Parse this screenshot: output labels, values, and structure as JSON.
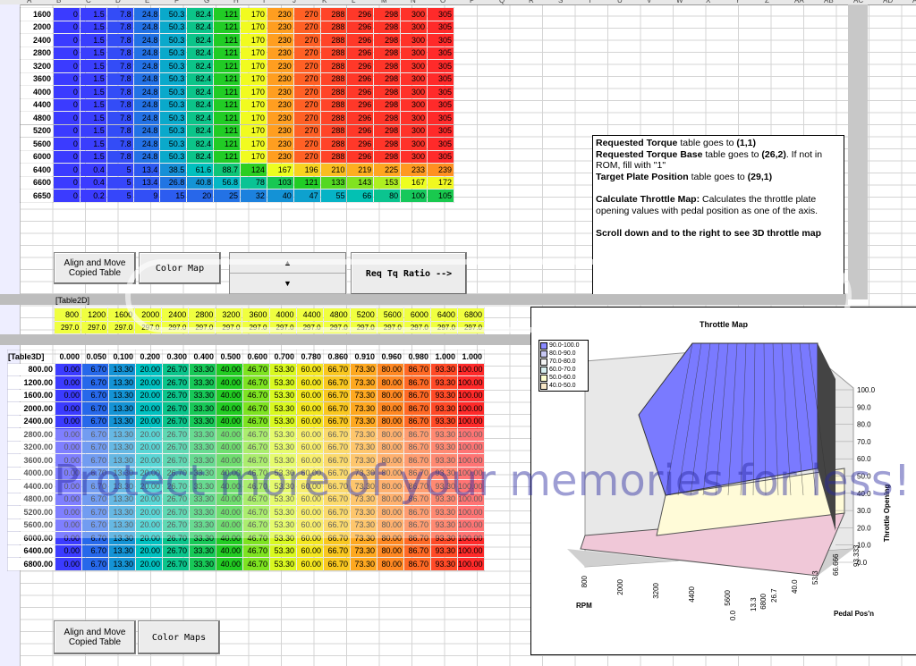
{
  "column_letters": [
    "A",
    "B",
    "C",
    "D",
    "E",
    "F",
    "G",
    "H",
    "I",
    "J",
    "K",
    "L",
    "M",
    "N",
    "O",
    "P",
    "Q",
    "R",
    "S",
    "T",
    "U",
    "V",
    "W",
    "X",
    "Y",
    "Z",
    "AA",
    "AB",
    "AC",
    "AD",
    "AE"
  ],
  "torque_table": {
    "rows": [
      {
        "rpm": "1600",
        "vals": [
          "0",
          "1.5",
          "7.8",
          "24.8",
          "50.3",
          "82.4",
          "121",
          "170",
          "230",
          "270",
          "288",
          "296",
          "298",
          "300",
          "305"
        ]
      },
      {
        "rpm": "2000",
        "vals": [
          "0",
          "1.5",
          "7.8",
          "24.8",
          "50.3",
          "82.4",
          "121",
          "170",
          "230",
          "270",
          "288",
          "296",
          "298",
          "300",
          "305"
        ]
      },
      {
        "rpm": "2400",
        "vals": [
          "0",
          "1.5",
          "7.8",
          "24.8",
          "50.3",
          "82.4",
          "121",
          "170",
          "230",
          "270",
          "288",
          "296",
          "298",
          "300",
          "305"
        ]
      },
      {
        "rpm": "2800",
        "vals": [
          "0",
          "1.5",
          "7.8",
          "24.8",
          "50.3",
          "82.4",
          "121",
          "170",
          "230",
          "270",
          "288",
          "296",
          "298",
          "300",
          "305"
        ]
      },
      {
        "rpm": "3200",
        "vals": [
          "0",
          "1.5",
          "7.8",
          "24.8",
          "50.3",
          "82.4",
          "121",
          "170",
          "230",
          "270",
          "288",
          "296",
          "298",
          "300",
          "305"
        ]
      },
      {
        "rpm": "3600",
        "vals": [
          "0",
          "1.5",
          "7.8",
          "24.8",
          "50.3",
          "82.4",
          "121",
          "170",
          "230",
          "270",
          "288",
          "296",
          "298",
          "300",
          "305"
        ]
      },
      {
        "rpm": "4000",
        "vals": [
          "0",
          "1.5",
          "7.8",
          "24.8",
          "50.3",
          "82.4",
          "121",
          "170",
          "230",
          "270",
          "288",
          "296",
          "298",
          "300",
          "305"
        ]
      },
      {
        "rpm": "4400",
        "vals": [
          "0",
          "1.5",
          "7.8",
          "24.8",
          "50.3",
          "82.4",
          "121",
          "170",
          "230",
          "270",
          "288",
          "296",
          "298",
          "300",
          "305"
        ]
      },
      {
        "rpm": "4800",
        "vals": [
          "0",
          "1.5",
          "7.8",
          "24.8",
          "50.3",
          "82.4",
          "121",
          "170",
          "230",
          "270",
          "288",
          "296",
          "298",
          "300",
          "305"
        ]
      },
      {
        "rpm": "5200",
        "vals": [
          "0",
          "1.5",
          "7.8",
          "24.8",
          "50.3",
          "82.4",
          "121",
          "170",
          "230",
          "270",
          "288",
          "296",
          "298",
          "300",
          "305"
        ]
      },
      {
        "rpm": "5600",
        "vals": [
          "0",
          "1.5",
          "7.8",
          "24.8",
          "50.3",
          "82.4",
          "121",
          "170",
          "230",
          "270",
          "288",
          "296",
          "298",
          "300",
          "305"
        ]
      },
      {
        "rpm": "6000",
        "vals": [
          "0",
          "1.5",
          "7.8",
          "24.8",
          "50.3",
          "82.4",
          "121",
          "170",
          "230",
          "270",
          "288",
          "296",
          "298",
          "300",
          "305"
        ]
      },
      {
        "rpm": "6400",
        "vals": [
          "0",
          "0.4",
          "5",
          "13.4",
          "38.5",
          "61.6",
          "88.7",
          "124",
          "167",
          "196",
          "210",
          "219",
          "225",
          "233",
          "239"
        ]
      },
      {
        "rpm": "6600",
        "vals": [
          "0",
          "0.4",
          "5",
          "13.4",
          "26.8",
          "40.8",
          "56.8",
          "78",
          "103",
          "121",
          "133",
          "143",
          "153",
          "167",
          "172"
        ]
      },
      {
        "rpm": "6650",
        "vals": [
          "0",
          "0.2",
          "5",
          "9",
          "15",
          "20",
          "25",
          "32",
          "40",
          "47",
          "55",
          "66",
          "80",
          "100",
          "105"
        ]
      }
    ]
  },
  "buttons": {
    "align_move_1": "Align and Move Copied Table",
    "color_map": "Color Map",
    "req_tq_ratio": "Req Tq Ratio -->",
    "align_move_2": "Align and Move Copied Table",
    "color_maps": "Color Maps",
    "spin_up": "▲",
    "spin_down": "▼"
  },
  "note": {
    "line1_b": "Requested Torque",
    "line1_t": " table goes to ",
    "line1_v": "(1,1)",
    "line2_b": "Requested Torque Base",
    "line2_t": " table goes to ",
    "line2_v": "(26,2)",
    "line2_rest": ". If not in ROM, fill with \"1\"",
    "line3_b": "Target Plate Position",
    "line3_t": " table goes to ",
    "line3_v": "(29,1)",
    "calc_b": "Calculate Throttle Map:",
    "calc_t": " Calculates the throttle plate opening values with pedal position as one of the axis.",
    "scroll": "Scroll down and to the right to see 3D throttle map"
  },
  "table2d": {
    "label": "[Table2D]",
    "headers": [
      "800",
      "1200",
      "1600",
      "2000",
      "2400",
      "2800",
      "3200",
      "3600",
      "4000",
      "4400",
      "4800",
      "5200",
      "5600",
      "6000",
      "6400",
      "6800"
    ],
    "values": [
      "297.0",
      "297.0",
      "297.0",
      "297.0",
      "297.0",
      "297.0",
      "297.0",
      "297.0",
      "297.0",
      "297.0",
      "297.0",
      "297.0",
      "297.0",
      "297.0",
      "297.0",
      "297.0"
    ]
  },
  "table3d": {
    "label": "[Table3D]",
    "headers": [
      "0.000",
      "0.050",
      "0.100",
      "0.200",
      "0.300",
      "0.400",
      "0.500",
      "0.600",
      "0.700",
      "0.780",
      "0.860",
      "0.910",
      "0.960",
      "0.980",
      "1.000",
      "1.000"
    ],
    "rows": [
      {
        "rpm": "800.00",
        "vals": [
          "0.00",
          "6.70",
          "13.30",
          "20.00",
          "26.70",
          "33.30",
          "40.00",
          "46.70",
          "53.30",
          "60.00",
          "66.70",
          "73.30",
          "80.00",
          "86.70",
          "93.30",
          "100.00"
        ]
      },
      {
        "rpm": "1200.00",
        "vals": [
          "0.00",
          "6.70",
          "13.30",
          "20.00",
          "26.70",
          "33.30",
          "40.00",
          "46.70",
          "53.30",
          "60.00",
          "66.70",
          "73.30",
          "80.00",
          "86.70",
          "93.30",
          "100.00"
        ]
      },
      {
        "rpm": "1600.00",
        "vals": [
          "0.00",
          "6.70",
          "13.30",
          "20.00",
          "26.70",
          "33.30",
          "40.00",
          "46.70",
          "53.30",
          "60.00",
          "66.70",
          "73.30",
          "80.00",
          "86.70",
          "93.30",
          "100.00"
        ]
      },
      {
        "rpm": "2000.00",
        "vals": [
          "0.00",
          "6.70",
          "13.30",
          "20.00",
          "26.70",
          "33.30",
          "40.00",
          "46.70",
          "53.30",
          "60.00",
          "66.70",
          "73.30",
          "80.00",
          "86.70",
          "93.30",
          "100.00"
        ]
      },
      {
        "rpm": "2400.00",
        "vals": [
          "0.00",
          "6.70",
          "13.30",
          "20.00",
          "26.70",
          "33.30",
          "40.00",
          "46.70",
          "53.30",
          "60.00",
          "66.70",
          "73.30",
          "80.00",
          "86.70",
          "93.30",
          "100.00"
        ]
      },
      {
        "rpm": "2800.00",
        "vals": [
          "0.00",
          "6.70",
          "13.30",
          "20.00",
          "26.70",
          "33.30",
          "40.00",
          "46.70",
          "53.30",
          "60.00",
          "66.70",
          "73.30",
          "80.00",
          "86.70",
          "93.30",
          "100.00"
        ]
      },
      {
        "rpm": "3200.00",
        "vals": [
          "0.00",
          "6.70",
          "13.30",
          "20.00",
          "26.70",
          "33.30",
          "40.00",
          "46.70",
          "53.30",
          "60.00",
          "66.70",
          "73.30",
          "80.00",
          "86.70",
          "93.30",
          "100.00"
        ]
      },
      {
        "rpm": "3600.00",
        "vals": [
          "0.00",
          "6.70",
          "13.30",
          "20.00",
          "26.70",
          "33.30",
          "40.00",
          "46.70",
          "53.30",
          "60.00",
          "66.70",
          "73.30",
          "80.00",
          "86.70",
          "93.30",
          "100.00"
        ]
      },
      {
        "rpm": "4000.00",
        "vals": [
          "0.00",
          "6.70",
          "13.30",
          "20.00",
          "26.70",
          "33.30",
          "40.00",
          "46.70",
          "53.30",
          "60.00",
          "66.70",
          "73.30",
          "80.00",
          "86.70",
          "93.30",
          "100.00"
        ]
      },
      {
        "rpm": "4400.00",
        "vals": [
          "0.00",
          "6.70",
          "13.30",
          "20.00",
          "26.70",
          "33.30",
          "40.00",
          "46.70",
          "53.30",
          "60.00",
          "66.70",
          "73.30",
          "80.00",
          "86.70",
          "93.30",
          "100.00"
        ]
      },
      {
        "rpm": "4800.00",
        "vals": [
          "0.00",
          "6.70",
          "13.30",
          "20.00",
          "26.70",
          "33.30",
          "40.00",
          "46.70",
          "53.30",
          "60.00",
          "66.70",
          "73.30",
          "80.00",
          "86.70",
          "93.30",
          "100.00"
        ]
      },
      {
        "rpm": "5200.00",
        "vals": [
          "0.00",
          "6.70",
          "13.30",
          "20.00",
          "26.70",
          "33.30",
          "40.00",
          "46.70",
          "53.30",
          "60.00",
          "66.70",
          "73.30",
          "80.00",
          "86.70",
          "93.30",
          "100.00"
        ]
      },
      {
        "rpm": "5600.00",
        "vals": [
          "0.00",
          "6.70",
          "13.30",
          "20.00",
          "26.70",
          "33.30",
          "40.00",
          "46.70",
          "53.30",
          "60.00",
          "66.70",
          "73.30",
          "80.00",
          "86.70",
          "93.30",
          "100.00"
        ]
      },
      {
        "rpm": "6000.00",
        "vals": [
          "0.00",
          "6.70",
          "13.30",
          "20.00",
          "26.70",
          "33.30",
          "40.00",
          "46.70",
          "53.30",
          "60.00",
          "66.70",
          "73.30",
          "80.00",
          "86.70",
          "93.30",
          "100.00"
        ]
      },
      {
        "rpm": "6400.00",
        "vals": [
          "0.00",
          "6.70",
          "13.30",
          "20.00",
          "26.70",
          "33.30",
          "40.00",
          "46.70",
          "53.30",
          "60.00",
          "66.70",
          "73.30",
          "80.00",
          "86.70",
          "93.30",
          "100.00"
        ]
      },
      {
        "rpm": "6800.00",
        "vals": [
          "0.00",
          "6.70",
          "13.30",
          "20.00",
          "26.70",
          "33.30",
          "40.00",
          "46.70",
          "53.30",
          "60.00",
          "66.70",
          "73.30",
          "80.00",
          "86.70",
          "93.30",
          "100.00"
        ]
      }
    ]
  },
  "chart_data": {
    "type": "surface",
    "title": "Throttle Map",
    "xlabel": "RPM",
    "ylabel": "Pedal Pos'n",
    "zlabel": "Throttle Opening",
    "x_ticks": [
      "800",
      "2000",
      "3200",
      "4400",
      "5600",
      "6800"
    ],
    "y_ticks": [
      "0.0",
      "13.3",
      "26.7",
      "40.0",
      "53.3",
      "66.666",
      "93.333"
    ],
    "z_ticks": [
      "100.0",
      "90.0",
      "80.0",
      "70.0",
      "60.0",
      "50.0",
      "40.0",
      "30.0",
      "20.0",
      "10.0",
      "0.0"
    ],
    "zlim": [
      0,
      100
    ],
    "legend": [
      "90.0-100.0",
      "80.0-90.0",
      "70.0-80.0",
      "60.0-70.0",
      "50.0-60.0",
      "40.0-50.0"
    ],
    "legend_colors": [
      "#8a8aff",
      "#c8c8f4",
      "#f4f4f4",
      "#d8f0f0",
      "#ffffd0",
      "#f8e8c8"
    ]
  },
  "watermark": "Protect more of your memories for less!",
  "colors": {
    "blue": "#3b3bff",
    "teal": "#00c0c0",
    "green": "#22cc22",
    "yellow": "#f0ff20",
    "orange": "#ffa020",
    "red": "#ff2a2a"
  }
}
